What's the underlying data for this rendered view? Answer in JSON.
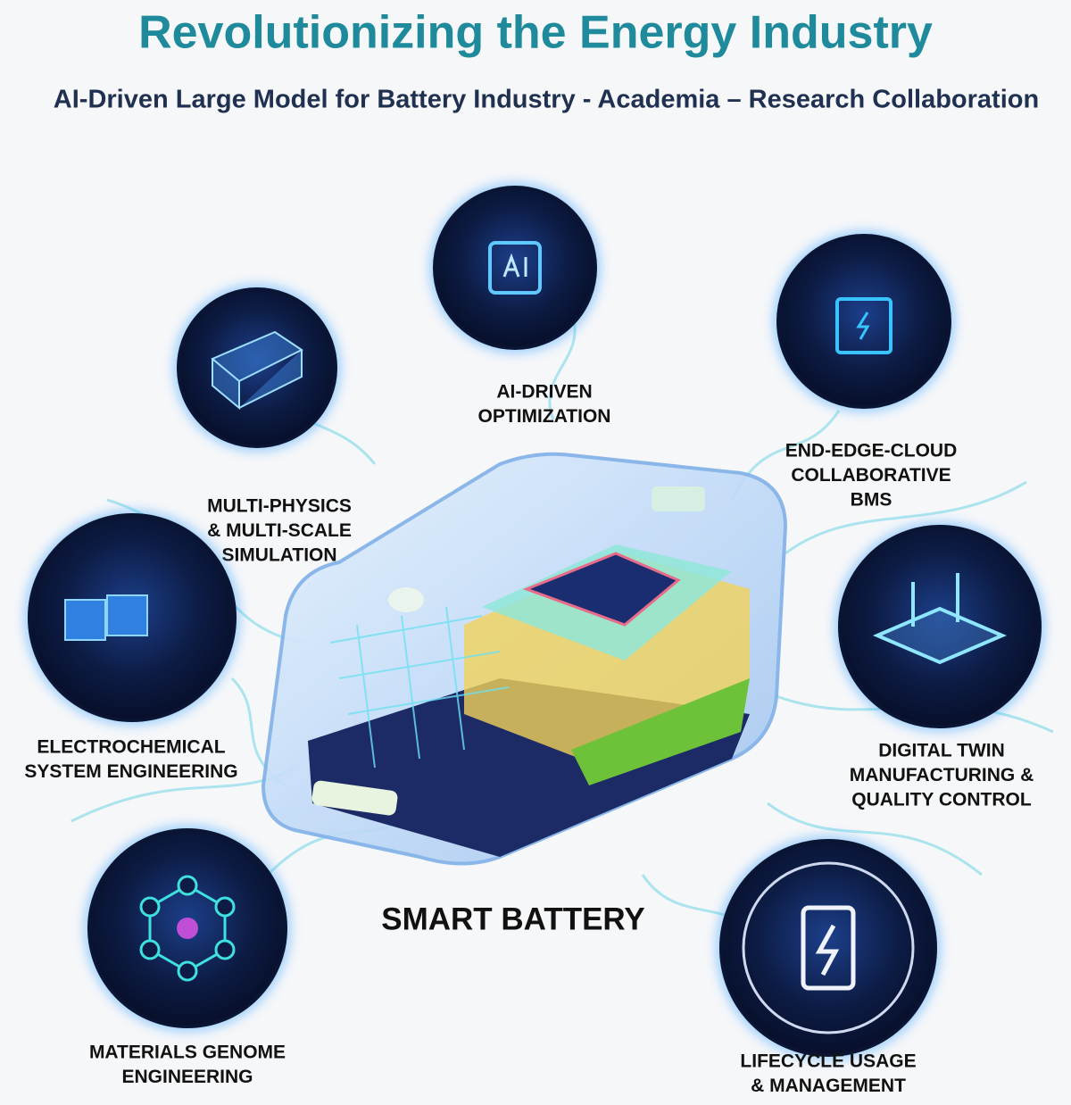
{
  "header": {
    "title": "Revolutionizing the Energy Industry",
    "subtitle": "AI-Driven Large Model for Battery Industry - Academia – Research Collaboration"
  },
  "center_label": "SMART BATTERY",
  "nodes": [
    {
      "label": [
        "AI-DRIVEN",
        "OPTIMIZATION"
      ]
    },
    {
      "label": [
        "MULTI-PHYSICS",
        "& MULTI-SCALE",
        "SIMULATION"
      ]
    },
    {
      "label": [
        "END-EDGE-CLOUD",
        "COLLABORATIVE",
        "BMS"
      ]
    },
    {
      "label": [
        "ELECTROCHEMICAL",
        "SYSTEM ENGINEERING"
      ]
    },
    {
      "label": [
        "DIGITAL TWIN",
        "MANUFACTURING &",
        "QUALITY CONTROL"
      ]
    },
    {
      "label": [
        "MATERIALS GENOME",
        "ENGINEERING"
      ]
    },
    {
      "label": [
        "LIFECYCLE USAGE",
        "& MANAGEMENT"
      ]
    }
  ]
}
